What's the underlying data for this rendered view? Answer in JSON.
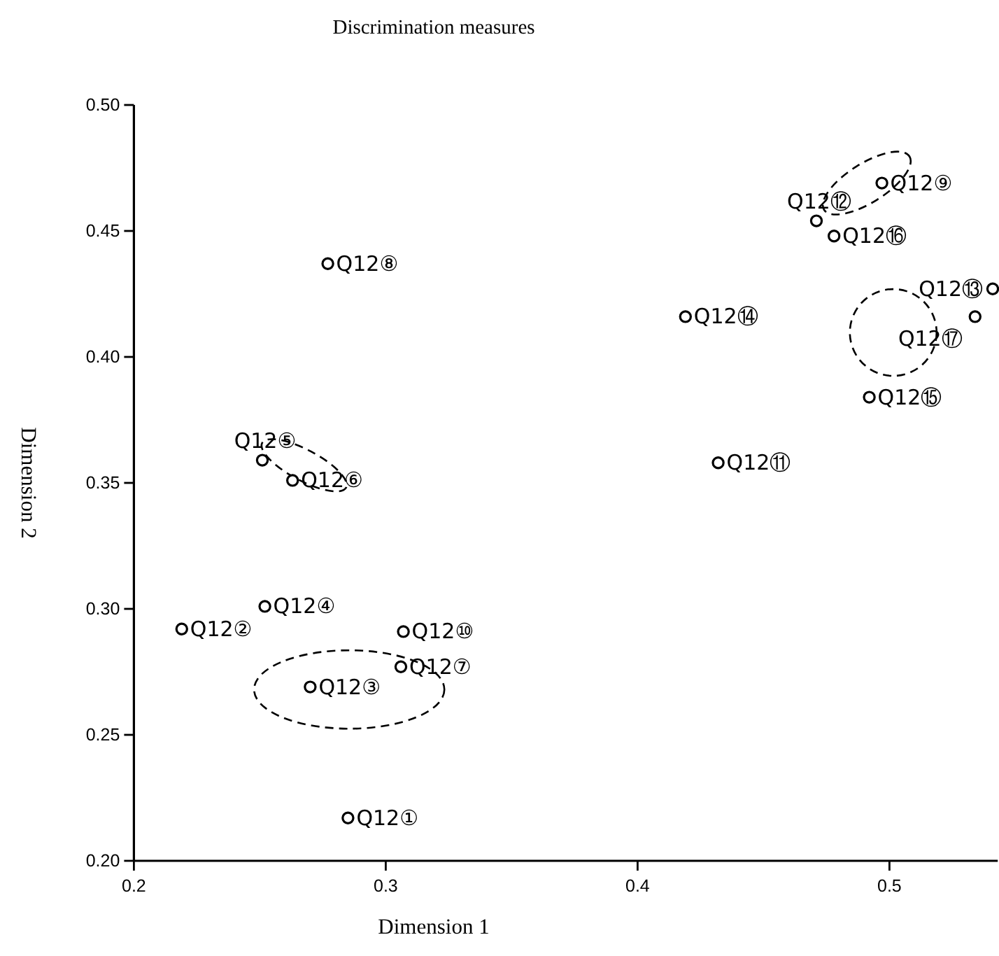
{
  "chart_data": {
    "type": "scatter",
    "title": "Discrimination measures",
    "xlabel": "Dimension 1",
    "ylabel": "Dimension 2",
    "xlim": [
      0.2,
      0.543
    ],
    "ylim": [
      0.2,
      0.5
    ],
    "xticks": [
      {
        "value": 0.2,
        "label": "0.2"
      },
      {
        "value": 0.3,
        "label": "0.3"
      },
      {
        "value": 0.4,
        "label": "0.4"
      },
      {
        "value": 0.5,
        "label": "0.5"
      }
    ],
    "yticks": [
      {
        "value": 0.2,
        "label": "0.20"
      },
      {
        "value": 0.25,
        "label": "0.25"
      },
      {
        "value": 0.3,
        "label": "0.30"
      },
      {
        "value": 0.35,
        "label": "0.35"
      },
      {
        "value": 0.4,
        "label": "0.40"
      },
      {
        "value": 0.45,
        "label": "0.45"
      },
      {
        "value": 0.5,
        "label": "0.50"
      }
    ],
    "marker": "circle",
    "grid": false,
    "series": [
      {
        "color": "#000000",
        "x": [
          0.285,
          0.219,
          0.27,
          0.252,
          0.251,
          0.263,
          0.306,
          0.277,
          0.497,
          0.307,
          0.432,
          0.471,
          0.541,
          0.419,
          0.492,
          0.478,
          0.534
        ],
        "values": [
          0.217,
          0.292,
          0.269,
          0.301,
          0.359,
          0.351,
          0.277,
          0.437,
          0.469,
          0.291,
          0.358,
          0.454,
          0.427,
          0.416,
          0.384,
          0.448,
          0.416
        ]
      }
    ],
    "annotations": [
      {
        "text": "Q12①",
        "x": 0.285,
        "y": 0.217
      },
      {
        "text": "Q12②",
        "x": 0.219,
        "y": 0.292
      },
      {
        "text": "Q12③",
        "x": 0.27,
        "y": 0.269
      },
      {
        "text": "Q12④",
        "x": 0.252,
        "y": 0.301
      },
      {
        "text": "Q12⑤",
        "x": 0.251,
        "y": 0.359
      },
      {
        "text": "Q12⑥",
        "x": 0.263,
        "y": 0.351
      },
      {
        "text": "Q12⑦",
        "x": 0.306,
        "y": 0.277
      },
      {
        "text": "Q12⑧",
        "x": 0.277,
        "y": 0.437
      },
      {
        "text": "Q12⑨",
        "x": 0.497,
        "y": 0.469
      },
      {
        "text": "Q12⑩",
        "x": 0.307,
        "y": 0.291
      },
      {
        "text": "Q12⑪",
        "x": 0.432,
        "y": 0.358
      },
      {
        "text": "Q12⑫",
        "x": 0.471,
        "y": 0.454
      },
      {
        "text": "Q12⑬",
        "x": 0.541,
        "y": 0.427
      },
      {
        "text": "Q12⑭",
        "x": 0.419,
        "y": 0.416
      },
      {
        "text": "Q12⑮",
        "x": 0.492,
        "y": 0.384
      },
      {
        "text": "Q12⑯",
        "x": 0.478,
        "y": 0.448
      },
      {
        "text": "Q12⑰",
        "x": 0.534,
        "y": 0.416
      }
    ]
  }
}
